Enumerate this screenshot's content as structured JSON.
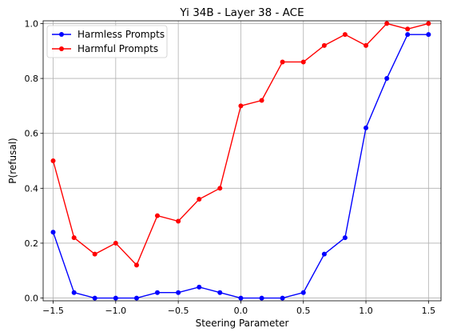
{
  "chart_data": {
    "type": "line",
    "title": "Yi 34B - Layer 38 - ACE",
    "xlabel": "Steering Parameter",
    "ylabel": "P(refusal)",
    "xlim": [
      -1.58,
      1.6
    ],
    "ylim": [
      -0.01,
      1.01
    ],
    "xticks": [
      -1.5,
      -1.0,
      -0.5,
      0.0,
      0.5,
      1.0,
      1.5
    ],
    "xtick_labels": [
      "−1.5",
      "−1.0",
      "−0.5",
      "0.0",
      "0.5",
      "1.0",
      "1.5"
    ],
    "yticks": [
      0.0,
      0.2,
      0.4,
      0.6,
      0.8,
      1.0
    ],
    "ytick_labels": [
      "0.0",
      "0.2",
      "0.4",
      "0.6",
      "0.8",
      "1.0"
    ],
    "grid": true,
    "legend_position": "top-left",
    "x": [
      -1.5,
      -1.333,
      -1.167,
      -1.0,
      -0.833,
      -0.667,
      -0.5,
      -0.333,
      -0.167,
      0.0,
      0.167,
      0.333,
      0.5,
      0.667,
      0.833,
      1.0,
      1.167,
      1.333,
      1.5
    ],
    "series": [
      {
        "name": "Harmless Prompts",
        "color": "#0000ff",
        "values": [
          0.24,
          0.02,
          0.0,
          0.0,
          0.0,
          0.02,
          0.02,
          0.04,
          0.02,
          0.0,
          0.0,
          0.0,
          0.02,
          0.16,
          0.22,
          0.62,
          0.8,
          0.96,
          0.96
        ]
      },
      {
        "name": "Harmful Prompts",
        "color": "#ff0000",
        "values": [
          0.5,
          0.22,
          0.16,
          0.2,
          0.12,
          0.3,
          0.28,
          0.36,
          0.4,
          0.7,
          0.72,
          0.86,
          0.86,
          0.92,
          0.96,
          0.92,
          1.0,
          0.98,
          1.0
        ]
      }
    ]
  }
}
